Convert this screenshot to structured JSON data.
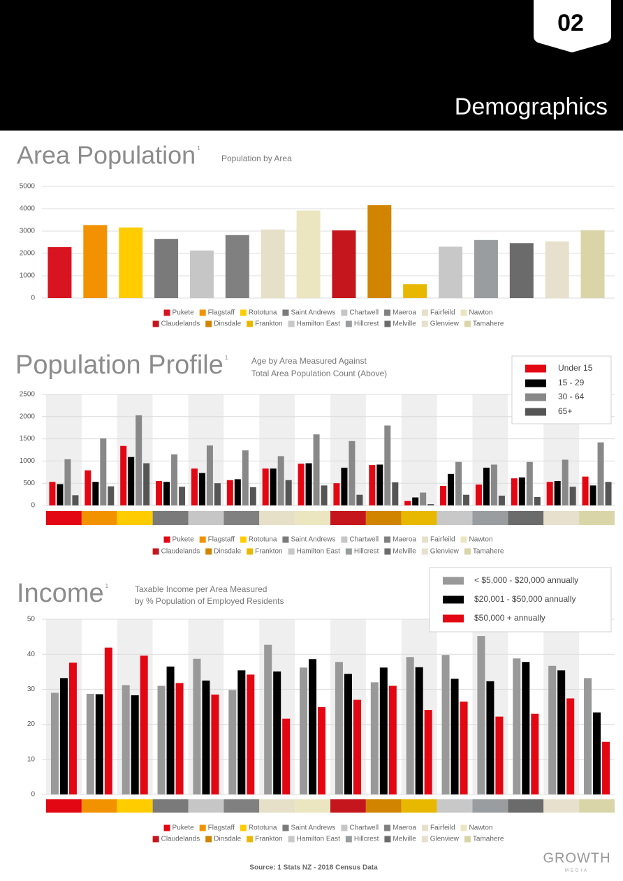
{
  "header": {
    "page_number": "02",
    "section_title": "Demographics"
  },
  "chart_data": [
    {
      "type": "bar",
      "title": "Area Population",
      "title_note": "1",
      "subtitle": [
        "Population by Area"
      ],
      "categories": [
        "Pukete",
        "Flagstaff",
        "Rototuna",
        "Saint Andrews",
        "Chartwell",
        "Maeroa",
        "Fairfeild",
        "Nawton",
        "Claudelands",
        "Dinsdale",
        "Frankton",
        "Hamilton East",
        "Hillcrest",
        "Melville",
        "Glenview",
        "Tamahere"
      ],
      "colors": [
        "#d7141f",
        "#f39200",
        "#ffcc00",
        "#7a7a7a",
        "#c6c6c6",
        "#808080",
        "#e6e0c8",
        "#ebe6c0",
        "#c4161c",
        "#d08400",
        "#e8b800",
        "#c8c8c8",
        "#9a9d9f",
        "#6b6b6b",
        "#e6e0cc",
        "#d9d5a8"
      ],
      "values": [
        2280,
        3270,
        3160,
        2650,
        2130,
        2820,
        3070,
        3920,
        3030,
        4160,
        620,
        2300,
        2600,
        2460,
        2540,
        3040
      ],
      "ylim": [
        0,
        5000
      ],
      "yticks": [
        0,
        1000,
        2000,
        3000,
        4000,
        5000
      ],
      "grid": true
    },
    {
      "type": "bar",
      "title": "Population Profile",
      "title_note": "1",
      "subtitle": [
        "Age by Area Measured Against",
        "Total Area Population Count (Above)"
      ],
      "categories": [
        "Pukete",
        "Flagstaff",
        "Rototuna",
        "Saint Andrews",
        "Chartwell",
        "Maeroa",
        "Fairfeild",
        "Nawton",
        "Claudelands",
        "Dinsdale",
        "Frankton",
        "Hamilton East",
        "Hillcrest",
        "Melville",
        "Glenview",
        "Tamahere"
      ],
      "colors": [
        "#e30613",
        "#f39200",
        "#ffcc00",
        "#7a7a7a",
        "#c6c6c6",
        "#808080",
        "#e6e0c8",
        "#ebe6c0",
        "#c4161c",
        "#d08400",
        "#e8b800",
        "#c8c8c8",
        "#9a9d9f",
        "#6b6b6b",
        "#e6e0cc",
        "#d9d5a8"
      ],
      "series": [
        {
          "name": "Under 15",
          "color": "#e30613",
          "values": [
            530,
            790,
            1340,
            550,
            830,
            570,
            830,
            940,
            500,
            910,
            100,
            440,
            470,
            610,
            530,
            650
          ]
        },
        {
          "name": "15 - 29",
          "color": "#000000",
          "values": [
            480,
            530,
            1090,
            530,
            730,
            590,
            830,
            950,
            850,
            920,
            180,
            710,
            850,
            630,
            550,
            450
          ]
        },
        {
          "name": "30 - 64",
          "color": "#888888",
          "values": [
            1040,
            1510,
            2030,
            1150,
            1350,
            1240,
            1110,
            1600,
            1450,
            1800,
            290,
            980,
            920,
            980,
            1030,
            1420
          ]
        },
        {
          "name": "65+",
          "color": "#555555",
          "values": [
            230,
            430,
            950,
            420,
            500,
            410,
            570,
            450,
            240,
            520,
            30,
            240,
            220,
            190,
            420,
            530
          ]
        }
      ],
      "ylim": [
        0,
        2500
      ],
      "yticks": [
        0,
        500,
        1000,
        1500,
        2000,
        2500
      ],
      "grid": true,
      "legend": "upper right"
    },
    {
      "type": "bar",
      "title": "Income",
      "title_note": "1",
      "subtitle": [
        "Taxable Income per Area Measured",
        "by % Population of Employed Residents"
      ],
      "categories": [
        "Pukete",
        "Flagstaff",
        "Rototuna",
        "Saint Andrews",
        "Chartwell",
        "Maeroa",
        "Fairfeild",
        "Nawton",
        "Claudelands",
        "Dinsdale",
        "Frankton",
        "Hamilton East",
        "Hillcrest",
        "Melville",
        "Glenview",
        "Tamahere"
      ],
      "colors": [
        "#e30613",
        "#f39200",
        "#ffcc00",
        "#7a7a7a",
        "#c6c6c6",
        "#808080",
        "#e6e0c8",
        "#ebe6c0",
        "#c4161c",
        "#d08400",
        "#e8b800",
        "#c8c8c8",
        "#9a9d9f",
        "#6b6b6b",
        "#e6e0cc",
        "#d9d5a8"
      ],
      "series": [
        {
          "name": "< $5,000 - $20,000 annually",
          "color": "#999999",
          "values": [
            29,
            28.7,
            31.2,
            31,
            38.7,
            29.8,
            42.7,
            36.2,
            37.8,
            32,
            39.2,
            39.8,
            45.2,
            38.8,
            36.7,
            33.2
          ]
        },
        {
          "name": "$20,001 - $50,000 annually",
          "color": "#000000",
          "values": [
            33.2,
            28.6,
            28.3,
            36.5,
            32.5,
            35.4,
            35.1,
            38.6,
            34.4,
            36.2,
            36.3,
            33,
            32.3,
            37.8,
            35.4,
            23.4
          ]
        },
        {
          "name": "$50,000 + annually",
          "color": "#e30613",
          "values": [
            37.6,
            41.9,
            39.6,
            31.8,
            28.5,
            34.2,
            21.6,
            24.9,
            27,
            31,
            24.1,
            26.5,
            22.2,
            23,
            27.4,
            15
          ]
        }
      ],
      "ylim": [
        0,
        50
      ],
      "yticks": [
        0,
        10,
        20,
        30,
        40,
        50
      ],
      "grid": true,
      "legend": "upper right"
    }
  ],
  "footer": {
    "source": "Source:  1 Stats NZ - 2018 Census Data",
    "logo": "GROWTH",
    "logo_sub": "MEDIA"
  }
}
